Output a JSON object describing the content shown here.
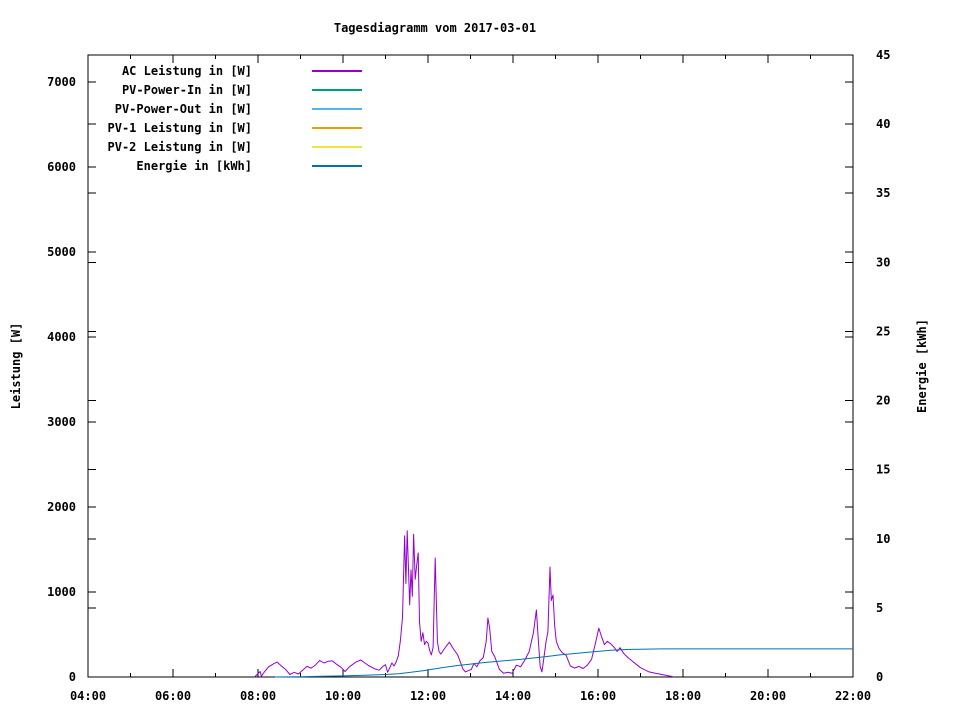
{
  "title": "Tagesdiagramm vom 2017-03-01",
  "chart_data": {
    "type": "line",
    "title": "Tagesdiagramm vom 2017-03-01",
    "xlabel": "",
    "ylabel": "Leistung [W]",
    "y2label": "Energie [kWh]",
    "x_unit": "hours",
    "x_range": [
      4,
      22
    ],
    "y_range": [
      0,
      7320
    ],
    "y2_range": [
      0,
      45
    ],
    "x_tick_labels": [
      "04:00",
      "06:00",
      "08:00",
      "10:00",
      "12:00",
      "14:00",
      "16:00",
      "18:00",
      "20:00",
      "22:00"
    ],
    "x_tick_hours": [
      4,
      6,
      8,
      10,
      12,
      14,
      16,
      18,
      20,
      22
    ],
    "x_minor_hours": [
      5,
      7,
      9,
      11,
      13,
      15,
      17,
      19,
      21
    ],
    "y_ticks": [
      0,
      1000,
      2000,
      3000,
      4000,
      5000,
      6000,
      7000
    ],
    "y_tick_labels": [
      "0",
      "1000",
      "2000",
      "3000",
      "4000",
      "5000",
      "6000",
      "7000"
    ],
    "y2_ticks": [
      0,
      5,
      10,
      15,
      20,
      25,
      30,
      35,
      40,
      45
    ],
    "y2_tick_labels": [
      "0",
      "5",
      "10",
      "15",
      "20",
      "25",
      "30",
      "35",
      "40",
      "45"
    ],
    "grid": false,
    "legend_position": "top-left-inside",
    "axis_color": "#000000",
    "background_color": "#ffffff",
    "series": [
      {
        "name": "AC Leistung in [W]",
        "color": "#9400d3",
        "axis": "y1",
        "points": [
          [
            7.92,
            0
          ],
          [
            8.0,
            40
          ],
          [
            8.05,
            65
          ],
          [
            8.08,
            10
          ],
          [
            8.15,
            60
          ],
          [
            8.25,
            120
          ],
          [
            8.38,
            160
          ],
          [
            8.45,
            175
          ],
          [
            8.55,
            130
          ],
          [
            8.65,
            90
          ],
          [
            8.75,
            30
          ],
          [
            8.85,
            55
          ],
          [
            8.95,
            35
          ],
          [
            9.05,
            80
          ],
          [
            9.15,
            125
          ],
          [
            9.25,
            105
          ],
          [
            9.35,
            140
          ],
          [
            9.45,
            195
          ],
          [
            9.55,
            165
          ],
          [
            9.65,
            185
          ],
          [
            9.75,
            190
          ],
          [
            9.85,
            150
          ],
          [
            9.95,
            115
          ],
          [
            10.05,
            65
          ],
          [
            10.15,
            120
          ],
          [
            10.3,
            175
          ],
          [
            10.42,
            200
          ],
          [
            10.5,
            170
          ],
          [
            10.6,
            135
          ],
          [
            10.75,
            95
          ],
          [
            10.85,
            80
          ],
          [
            10.95,
            130
          ],
          [
            11.0,
            145
          ],
          [
            11.05,
            55
          ],
          [
            11.1,
            110
          ],
          [
            11.15,
            165
          ],
          [
            11.2,
            130
          ],
          [
            11.25,
            175
          ],
          [
            11.3,
            250
          ],
          [
            11.35,
            430
          ],
          [
            11.4,
            700
          ],
          [
            11.45,
            1660
          ],
          [
            11.48,
            1100
          ],
          [
            11.51,
            1720
          ],
          [
            11.54,
            1300
          ],
          [
            11.57,
            850
          ],
          [
            11.6,
            1260
          ],
          [
            11.63,
            950
          ],
          [
            11.66,
            1680
          ],
          [
            11.7,
            1150
          ],
          [
            11.74,
            1350
          ],
          [
            11.77,
            1460
          ],
          [
            11.8,
            650
          ],
          [
            11.84,
            420
          ],
          [
            11.88,
            520
          ],
          [
            11.92,
            380
          ],
          [
            11.96,
            420
          ],
          [
            12.0,
            400
          ],
          [
            12.04,
            310
          ],
          [
            12.08,
            260
          ],
          [
            12.12,
            350
          ],
          [
            12.17,
            1400
          ],
          [
            12.22,
            420
          ],
          [
            12.26,
            300
          ],
          [
            12.3,
            270
          ],
          [
            12.38,
            330
          ],
          [
            12.5,
            410
          ],
          [
            12.6,
            330
          ],
          [
            12.7,
            260
          ],
          [
            12.82,
            95
          ],
          [
            12.88,
            60
          ],
          [
            12.95,
            75
          ],
          [
            13.02,
            90
          ],
          [
            13.08,
            160
          ],
          [
            13.15,
            120
          ],
          [
            13.22,
            190
          ],
          [
            13.3,
            230
          ],
          [
            13.37,
            420
          ],
          [
            13.41,
            694
          ],
          [
            13.45,
            580
          ],
          [
            13.5,
            300
          ],
          [
            13.57,
            240
          ],
          [
            13.68,
            90
          ],
          [
            13.78,
            45
          ],
          [
            13.88,
            55
          ],
          [
            13.98,
            45
          ],
          [
            14.08,
            140
          ],
          [
            14.18,
            120
          ],
          [
            14.28,
            200
          ],
          [
            14.38,
            300
          ],
          [
            14.48,
            520
          ],
          [
            14.55,
            788
          ],
          [
            14.6,
            400
          ],
          [
            14.64,
            120
          ],
          [
            14.68,
            60
          ],
          [
            14.72,
            200
          ],
          [
            14.78,
            420
          ],
          [
            14.82,
            530
          ],
          [
            14.87,
            1294
          ],
          [
            14.9,
            900
          ],
          [
            14.94,
            965
          ],
          [
            14.98,
            600
          ],
          [
            15.02,
            420
          ],
          [
            15.08,
            340
          ],
          [
            15.15,
            290
          ],
          [
            15.25,
            255
          ],
          [
            15.35,
            130
          ],
          [
            15.45,
            105
          ],
          [
            15.55,
            125
          ],
          [
            15.65,
            100
          ],
          [
            15.75,
            140
          ],
          [
            15.85,
            210
          ],
          [
            15.95,
            420
          ],
          [
            16.02,
            576
          ],
          [
            16.08,
            480
          ],
          [
            16.15,
            380
          ],
          [
            16.22,
            420
          ],
          [
            16.3,
            390
          ],
          [
            16.38,
            350
          ],
          [
            16.45,
            300
          ],
          [
            16.52,
            345
          ],
          [
            16.6,
            280
          ],
          [
            16.7,
            230
          ],
          [
            16.8,
            190
          ],
          [
            16.9,
            150
          ],
          [
            17.0,
            110
          ],
          [
            17.1,
            85
          ],
          [
            17.2,
            60
          ],
          [
            17.35,
            45
          ],
          [
            17.5,
            30
          ],
          [
            17.65,
            15
          ],
          [
            17.8,
            0
          ]
        ]
      },
      {
        "name": "PV-Power-In in [W]",
        "color": "#009e73",
        "axis": "y1",
        "points": []
      },
      {
        "name": "PV-Power-Out in [W]",
        "color": "#56b4e9",
        "axis": "y1",
        "points": []
      },
      {
        "name": "PV-1 Leistung in [W]",
        "color": "#e69f00",
        "axis": "y1",
        "points": []
      },
      {
        "name": "PV-2 Leistung in [W]",
        "color": "#f0e442",
        "axis": "y1",
        "points": []
      },
      {
        "name": "Energie in [kWh]",
        "color": "#0072b2",
        "axis": "y2",
        "points": [
          [
            8.4,
            0
          ],
          [
            9.0,
            0.02
          ],
          [
            9.5,
            0.05
          ],
          [
            10.0,
            0.08
          ],
          [
            10.5,
            0.13
          ],
          [
            11.0,
            0.18
          ],
          [
            11.3,
            0.24
          ],
          [
            11.6,
            0.34
          ],
          [
            11.9,
            0.46
          ],
          [
            12.1,
            0.56
          ],
          [
            12.4,
            0.7
          ],
          [
            12.7,
            0.83
          ],
          [
            13.0,
            0.93
          ],
          [
            13.3,
            1.04
          ],
          [
            13.6,
            1.12
          ],
          [
            13.9,
            1.2
          ],
          [
            14.2,
            1.28
          ],
          [
            14.5,
            1.38
          ],
          [
            14.8,
            1.48
          ],
          [
            15.1,
            1.6
          ],
          [
            15.4,
            1.68
          ],
          [
            15.7,
            1.77
          ],
          [
            16.0,
            1.85
          ],
          [
            16.3,
            1.93
          ],
          [
            16.6,
            1.98
          ],
          [
            17.0,
            2.01
          ],
          [
            17.5,
            2.03
          ],
          [
            18.0,
            2.03
          ],
          [
            22.0,
            2.03
          ]
        ]
      }
    ]
  }
}
